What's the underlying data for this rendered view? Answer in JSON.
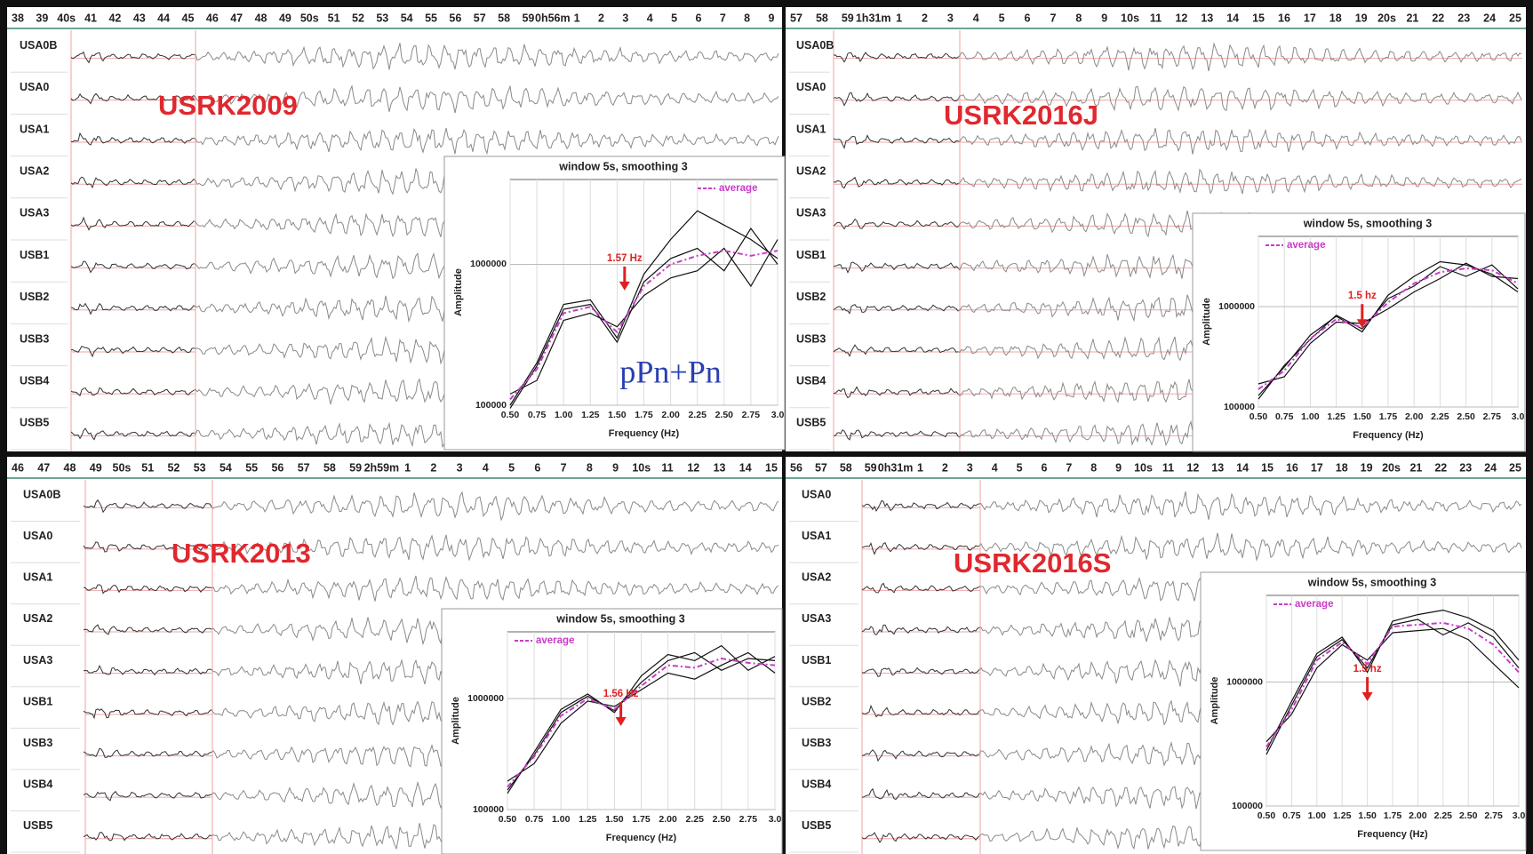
{
  "panels": [
    {
      "title": "USRK2009",
      "time_ticks": [
        "38",
        "39",
        "40s",
        "41",
        "42",
        "43",
        "44",
        "45",
        "46",
        "47",
        "48",
        "49",
        "50s",
        "51",
        "52",
        "53",
        "54",
        "55",
        "56",
        "57",
        "58",
        "59",
        "0h56m",
        "1",
        "2",
        "3",
        "4",
        "5",
        "6",
        "7",
        "8",
        "9"
      ],
      "stations": [
        "USA0B",
        "USA0",
        "USA1",
        "USA2",
        "USA3",
        "USB1",
        "USB2",
        "USB3",
        "USB4",
        "USB5"
      ],
      "note": "pPn+Pn",
      "inset": {
        "type": "line",
        "title": "window 5s, smoothing 3",
        "xlabel": "Frequency (Hz)",
        "ylabel": "Amplitude",
        "log_y": true,
        "grid": true,
        "legend": "upper right",
        "xlim": [
          0.5,
          3.0
        ],
        "ylim": [
          100000,
          4000000
        ],
        "xticks": [
          {
            "value": 0.5,
            "label": "0.50"
          },
          0.75,
          {
            "value": 1,
            "label": "1.00"
          },
          1.25,
          {
            "value": 1.5,
            "label": "1.50"
          },
          1.75,
          {
            "value": 2,
            "label": "2.00"
          },
          2.25,
          {
            "value": 2.5,
            "label": "2.50"
          },
          2.75,
          {
            "value": 3,
            "label": "3.0"
          }
        ],
        "yticks": [
          100000,
          1000000
        ],
        "annotation": {
          "text": "1.57 Hz",
          "x": 1.57
        },
        "x": [
          0.5,
          0.75,
          1,
          1.25,
          1.5,
          1.75,
          2,
          2.25,
          2.5,
          2.75,
          3
        ],
        "series": [
          {
            "name": "average",
            "color": "#c83cc8",
            "values": [
              110000,
              180000,
              450000,
              500000,
              330000,
              700000,
              1000000,
              1150000,
              1250000,
              1150000,
              1250000
            ]
          },
          {
            "color": "#111111",
            "values": [
              100000,
              200000,
              520000,
              560000,
              300000,
              850000,
              1500000,
              2400000,
              1900000,
              1500000,
              1100000
            ]
          },
          {
            "color": "#111111",
            "values": [
              120000,
              150000,
              400000,
              450000,
              360000,
              600000,
              800000,
              900000,
              1300000,
              700000,
              1500000
            ]
          },
          {
            "color": "#111111",
            "values": [
              95000,
              190000,
              480000,
              520000,
              280000,
              750000,
              1100000,
              1300000,
              900000,
              1800000,
              1000000
            ]
          }
        ]
      }
    },
    {
      "title": "USRK2016J",
      "time_ticks": [
        "57",
        "58",
        "59",
        "1h31m",
        "1",
        "2",
        "3",
        "4",
        "5",
        "6",
        "7",
        "8",
        "9",
        "10s",
        "11",
        "12",
        "13",
        "14",
        "15",
        "16",
        "17",
        "18",
        "19",
        "20s",
        "21",
        "22",
        "23",
        "24",
        "25"
      ],
      "stations": [
        "USA0B",
        "USA0",
        "USA1",
        "USA2",
        "USA3",
        "USB1",
        "USB2",
        "USB3",
        "USB4",
        "USB5"
      ],
      "inset": {
        "type": "line",
        "title": "window 5s, smoothing 3",
        "xlabel": "Frequency (Hz)",
        "ylabel": "Amplitude",
        "log_y": true,
        "grid": true,
        "legend": "upper left",
        "xlim": [
          0.5,
          3.0
        ],
        "ylim": [
          100000,
          5000000
        ],
        "xticks": [
          {
            "value": 0.5,
            "label": "0.50"
          },
          0.75,
          {
            "value": 1,
            "label": "1.00"
          },
          1.25,
          {
            "value": 1.5,
            "label": "1.50"
          },
          1.75,
          {
            "value": 2,
            "label": "2.00"
          },
          2.25,
          {
            "value": 2.5,
            "label": "2.50"
          },
          2.75,
          {
            "value": 3,
            "label": "3.0"
          }
        ],
        "yticks": [
          100000,
          1000000
        ],
        "annotation": {
          "text": "1.5 hz",
          "x": 1.5
        },
        "x": [
          0.5,
          0.75,
          1,
          1.25,
          1.5,
          1.75,
          2,
          2.25,
          2.5,
          2.75,
          3
        ],
        "series": [
          {
            "name": "average",
            "color": "#c83cc8",
            "values": [
              150000,
              230000,
              480000,
              750000,
              620000,
              1100000,
              1700000,
              2200000,
              2400000,
              2300000,
              1700000
            ]
          },
          {
            "color": "#111111",
            "values": [
              130000,
              250000,
              520000,
              800000,
              560000,
              1300000,
              2000000,
              2800000,
              2600000,
              2100000,
              1400000
            ]
          },
          {
            "color": "#111111",
            "values": [
              170000,
              200000,
              430000,
              700000,
              680000,
              950000,
              1400000,
              1900000,
              2700000,
              2000000,
              1900000
            ]
          },
          {
            "color": "#111111",
            "values": [
              120000,
              260000,
              470000,
              820000,
              600000,
              1200000,
              1600000,
              2500000,
              2000000,
              2600000,
              1500000
            ]
          }
        ]
      }
    },
    {
      "title": "USRK2013",
      "time_ticks": [
        "46",
        "47",
        "48",
        "49",
        "50s",
        "51",
        "52",
        "53",
        "54",
        "55",
        "56",
        "57",
        "58",
        "59",
        "2h59m",
        "1",
        "2",
        "3",
        "4",
        "5",
        "6",
        "7",
        "8",
        "9",
        "10s",
        "11",
        "12",
        "13",
        "14",
        "15"
      ],
      "stations": [
        "USA0B",
        "USA0",
        "USA1",
        "USA2",
        "USA3",
        "USB1",
        "USB3",
        "USB4",
        "USB5"
      ],
      "inset": {
        "type": "line",
        "title": "window 5s, smoothing 3",
        "xlabel": "Frequency (Hz)",
        "ylabel": "Amplitude",
        "log_y": true,
        "grid": true,
        "legend": "upper left",
        "xlim": [
          0.5,
          3.0
        ],
        "ylim": [
          100000,
          4000000
        ],
        "xticks": [
          {
            "value": 0.5,
            "label": "0.50"
          },
          0.75,
          {
            "value": 1,
            "label": "1.00"
          },
          1.25,
          {
            "value": 1.5,
            "label": "1.50"
          },
          1.75,
          {
            "value": 2,
            "label": "2.00"
          },
          2.25,
          {
            "value": 2.5,
            "label": "2.50"
          },
          2.75,
          {
            "value": 3,
            "label": "3.0"
          }
        ],
        "yticks": [
          100000,
          1000000
        ],
        "annotation": {
          "text": "1.56 Hz",
          "x": 1.56
        },
        "x": [
          0.5,
          0.75,
          1,
          1.25,
          1.5,
          1.75,
          2,
          2.25,
          2.5,
          2.75,
          3
        ],
        "series": [
          {
            "name": "average",
            "color": "#c83cc8",
            "values": [
              160000,
              300000,
              700000,
              1000000,
              800000,
              1300000,
              2000000,
              1900000,
              2300000,
              2100000,
              2000000
            ]
          },
          {
            "color": "#111111",
            "values": [
              140000,
              330000,
              800000,
              1100000,
              750000,
              1600000,
              2500000,
              2200000,
              3000000,
              1800000,
              2400000
            ]
          },
          {
            "color": "#111111",
            "values": [
              180000,
              260000,
              600000,
              950000,
              850000,
              1200000,
              1700000,
              1500000,
              2000000,
              2600000,
              1700000
            ]
          },
          {
            "color": "#111111",
            "values": [
              150000,
              310000,
              750000,
              1050000,
              780000,
              1400000,
              2200000,
              2600000,
              1800000,
              2300000,
              2200000
            ]
          }
        ]
      }
    },
    {
      "title": "USRK2016S",
      "time_ticks": [
        "56",
        "57",
        "58",
        "59",
        "0h31m",
        "1",
        "2",
        "3",
        "4",
        "5",
        "6",
        "7",
        "8",
        "9",
        "10s",
        "11",
        "12",
        "13",
        "14",
        "15",
        "16",
        "17",
        "18",
        "19",
        "20s",
        "21",
        "22",
        "23",
        "24",
        "25"
      ],
      "stations": [
        "USA0",
        "USA1",
        "USA2",
        "USA3",
        "USB1",
        "USB2",
        "USB3",
        "USB4",
        "USB5"
      ],
      "inset": {
        "type": "line",
        "title": "window 5s, smoothing 3",
        "xlabel": "Frequency (Hz)",
        "ylabel": "Amplitude",
        "log_y": true,
        "grid": true,
        "legend": "upper left",
        "xlim": [
          0.5,
          3.0
        ],
        "ylim": [
          100000,
          5000000
        ],
        "xticks": [
          {
            "value": 0.5,
            "label": "0.50"
          },
          0.75,
          {
            "value": 1,
            "label": "1.00"
          },
          1.25,
          {
            "value": 1.5,
            "label": "1.50"
          },
          1.75,
          {
            "value": 2,
            "label": "2.00"
          },
          2.25,
          {
            "value": 2.5,
            "label": "2.50"
          },
          2.75,
          {
            "value": 3,
            "label": "3.0"
          }
        ],
        "yticks": [
          100000,
          1000000
        ],
        "annotation": {
          "text": "1.5 hz",
          "x": 1.5
        },
        "x": [
          0.5,
          0.75,
          1,
          1.25,
          1.5,
          1.75,
          2,
          2.25,
          2.5,
          2.75,
          3
        ],
        "series": [
          {
            "name": "average",
            "color": "#c83cc8",
            "values": [
              300000,
              600000,
              1500000,
              2100000,
              1400000,
              2800000,
              2900000,
              3000000,
              2700000,
              2000000,
              1200000
            ]
          },
          {
            "color": "#111111",
            "values": [
              280000,
              700000,
              1700000,
              2300000,
              1200000,
              3100000,
              3500000,
              3800000,
              3300000,
              2600000,
              1500000
            ]
          },
          {
            "color": "#111111",
            "values": [
              330000,
              550000,
              1300000,
              2000000,
              1500000,
              2500000,
              2600000,
              2700000,
              2200000,
              1400000,
              900000
            ]
          },
          {
            "color": "#111111",
            "values": [
              260000,
              650000,
              1600000,
              2200000,
              1300000,
              2900000,
              3200000,
              2400000,
              3000000,
              2300000,
              1300000
            ]
          }
        ]
      }
    }
  ]
}
